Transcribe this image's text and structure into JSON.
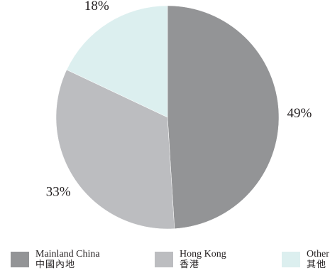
{
  "chart_data": {
    "type": "pie",
    "slices": [
      {
        "value": 49,
        "label": "49%",
        "legend_en": "Mainland China",
        "legend_zh": "中國內地",
        "color": "#939496"
      },
      {
        "value": 33,
        "label": "33%",
        "legend_en": "Hong Kong",
        "legend_zh": "香港",
        "color": "#bcbdc0"
      },
      {
        "value": 18,
        "label": "18%",
        "legend_en": "Other",
        "legend_zh": "其他",
        "color": "#dcefef"
      }
    ],
    "start_angle_deg": 0,
    "direction": "clockwise",
    "legend_position": "bottom"
  }
}
